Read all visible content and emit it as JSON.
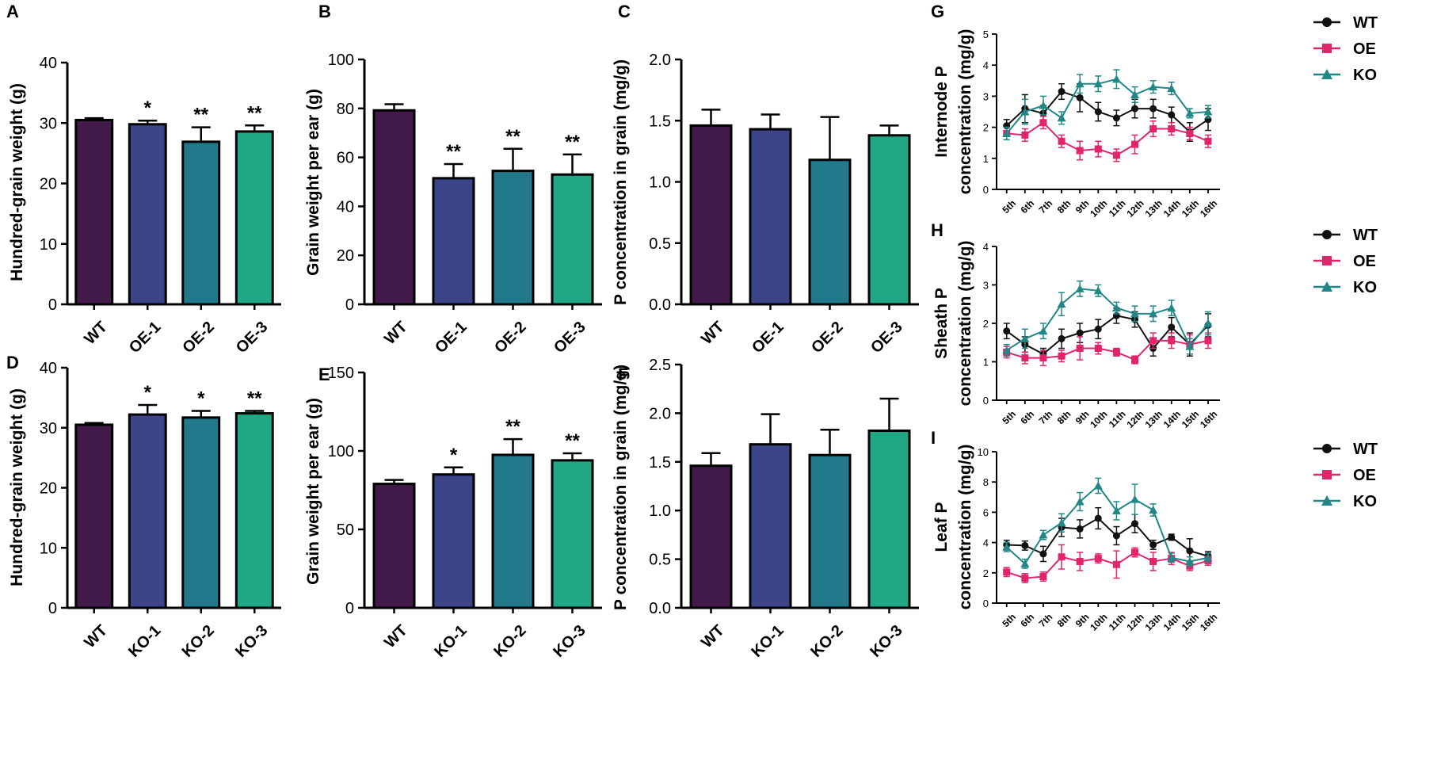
{
  "figure": {
    "type": "multi-panel scientific figure",
    "colors": {
      "WT": "#411a4a",
      "group1": "#3d4588",
      "group2": "#23798c",
      "group3": "#21a783",
      "line_WT": "#111111",
      "line_OE": "#e2246b",
      "line_KO": "#218787",
      "axis": "#000000"
    }
  },
  "chart_data": [
    {
      "panel": "A",
      "type": "bar",
      "categories": [
        "WT",
        "OE-1",
        "OE-2",
        "OE-3"
      ],
      "values": [
        30.5,
        29.8,
        26.9,
        28.6
      ],
      "errors": [
        0.3,
        0.6,
        2.4,
        1.0
      ],
      "significance": [
        "",
        "*",
        "**",
        "**"
      ],
      "ylabel": "Hundred-grain weight (g)",
      "ylim": [
        0,
        40
      ],
      "yticks": [
        "0",
        "10",
        "20",
        "30",
        "40"
      ]
    },
    {
      "panel": "B",
      "type": "bar",
      "categories": [
        "WT",
        "OE-1",
        "OE-2",
        "OE-3"
      ],
      "values": [
        79.2,
        51.5,
        54.5,
        53.0
      ],
      "errors": [
        2.5,
        5.8,
        9.0,
        8.2
      ],
      "significance": [
        "",
        "**",
        "**",
        "**"
      ],
      "ylabel": "Grain weight per ear (g)",
      "ylim": [
        0,
        100
      ],
      "yticks": [
        "0",
        "20",
        "40",
        "60",
        "80",
        "100"
      ]
    },
    {
      "panel": "C",
      "type": "bar",
      "categories": [
        "WT",
        "OE-1",
        "OE-2",
        "OE-3"
      ],
      "values": [
        1.46,
        1.43,
        1.18,
        1.38
      ],
      "errors": [
        0.13,
        0.12,
        0.35,
        0.08
      ],
      "significance": [
        "",
        "",
        "",
        ""
      ],
      "ylabel": "P  concentration in grain (mg/g)",
      "ylim": [
        0,
        2.0
      ],
      "yticks": [
        "0.0",
        "0.5",
        "1.0",
        "1.5",
        "2.0"
      ]
    },
    {
      "panel": "D",
      "type": "bar",
      "categories": [
        "WT",
        "KO-1",
        "KO-2",
        "KO-3"
      ],
      "values": [
        30.5,
        32.2,
        31.7,
        32.4
      ],
      "errors": [
        0.3,
        1.6,
        1.1,
        0.4
      ],
      "significance": [
        "",
        "*",
        "*",
        "**"
      ],
      "ylabel": "Hundred-grain weight (g)",
      "ylim": [
        0,
        40
      ],
      "yticks": [
        "0",
        "10",
        "20",
        "30",
        "40"
      ]
    },
    {
      "panel": "E",
      "type": "bar",
      "categories": [
        "WT",
        "KO-1",
        "KO-2",
        "KO-3"
      ],
      "values": [
        79.0,
        85.0,
        97.5,
        94.0
      ],
      "errors": [
        2.5,
        4.5,
        10.0,
        4.5
      ],
      "significance": [
        "",
        "*",
        "**",
        "**"
      ],
      "ylabel": "Grain weight per ear (g)",
      "ylim": [
        0,
        150
      ],
      "yticks": [
        "0",
        "50",
        "100",
        "150"
      ]
    },
    {
      "panel": "F",
      "type": "bar",
      "categories": [
        "WT",
        "KO-1",
        "KO-2",
        "KO-3"
      ],
      "values": [
        1.46,
        1.68,
        1.57,
        1.82
      ],
      "errors": [
        0.13,
        0.31,
        0.26,
        0.33
      ],
      "significance": [
        "",
        "",
        "",
        ""
      ],
      "ylabel": "P  concentration in grain (mg/g)",
      "ylim": [
        0,
        2.5
      ],
      "yticks": [
        "0.0",
        "0.5",
        "1.0",
        "1.5",
        "2.0",
        "2.5"
      ]
    },
    {
      "panel": "G",
      "type": "line",
      "x": [
        "5th",
        "6th",
        "7th",
        "8th",
        "9th",
        "10th",
        "11th",
        "12th",
        "13th",
        "14th",
        "15th",
        "16th"
      ],
      "ylabel_line1": "Internode P",
      "ylabel_line2": "concentration (mg/g)",
      "ylim": [
        0,
        5
      ],
      "yticks": [
        "0",
        "1",
        "2",
        "3",
        "4",
        "5"
      ],
      "legend": [
        "WT",
        "OE",
        "KO"
      ],
      "series": [
        {
          "name": "WT",
          "values": [
            2.05,
            2.6,
            2.45,
            3.15,
            2.95,
            2.5,
            2.3,
            2.6,
            2.6,
            2.4,
            1.85,
            2.25
          ],
          "errors": [
            0.2,
            0.45,
            0.25,
            0.25,
            0.45,
            0.3,
            0.25,
            0.3,
            0.3,
            0.25,
            0.3,
            0.35
          ]
        },
        {
          "name": "OE",
          "values": [
            1.8,
            1.75,
            2.15,
            1.55,
            1.25,
            1.3,
            1.1,
            1.45,
            1.95,
            1.95,
            1.8,
            1.55
          ],
          "errors": [
            0.2,
            0.2,
            0.2,
            0.2,
            0.3,
            0.25,
            0.2,
            0.3,
            0.25,
            0.2,
            0.2,
            0.2
          ]
        },
        {
          "name": "KO",
          "values": [
            1.8,
            2.5,
            2.7,
            2.3,
            3.4,
            3.4,
            3.55,
            3.05,
            3.3,
            3.25,
            2.45,
            2.5
          ],
          "errors": [
            0.2,
            0.4,
            0.3,
            0.2,
            0.3,
            0.25,
            0.3,
            0.25,
            0.2,
            0.2,
            0.15,
            0.2
          ]
        }
      ]
    },
    {
      "panel": "H",
      "type": "line",
      "x": [
        "5th",
        "6th",
        "7th",
        "8th",
        "9th",
        "10th",
        "11th",
        "12th",
        "13th",
        "14th",
        "15th",
        "16th"
      ],
      "ylabel_line1": "Sheath P",
      "ylabel_line2": "concentration (mg/g)",
      "ylim": [
        0,
        4
      ],
      "yticks": [
        "0",
        "1",
        "2",
        "3",
        "4"
      ],
      "legend": [
        "WT",
        "OE",
        "KO"
      ],
      "series": [
        {
          "name": "WT",
          "values": [
            1.8,
            1.45,
            1.2,
            1.6,
            1.75,
            1.85,
            2.2,
            2.1,
            1.35,
            1.9,
            1.45,
            1.95
          ],
          "errors": [
            0.2,
            0.2,
            0.15,
            0.25,
            0.25,
            0.25,
            0.2,
            0.2,
            0.2,
            0.25,
            0.3,
            0.3
          ]
        },
        {
          "name": "OE",
          "values": [
            1.25,
            1.1,
            1.1,
            1.15,
            1.35,
            1.35,
            1.25,
            1.05,
            1.55,
            1.55,
            1.45,
            1.55
          ],
          "errors": [
            0.15,
            0.15,
            0.2,
            0.15,
            0.3,
            0.15,
            0.1,
            0.1,
            0.2,
            0.2,
            0.25,
            0.2
          ]
        },
        {
          "name": "KO",
          "values": [
            1.3,
            1.6,
            1.8,
            2.5,
            2.9,
            2.85,
            2.4,
            2.25,
            2.25,
            2.4,
            1.4,
            2.0
          ],
          "errors": [
            0.15,
            0.25,
            0.2,
            0.3,
            0.2,
            0.15,
            0.15,
            0.2,
            0.2,
            0.2,
            0.2,
            0.3
          ]
        }
      ]
    },
    {
      "panel": "I",
      "type": "line",
      "x": [
        "5th",
        "6th",
        "7th",
        "8th",
        "9th",
        "10th",
        "11th",
        "12th",
        "13th",
        "14th",
        "15th",
        "16th"
      ],
      "ylabel_line1": "Leaf P",
      "ylabel_line2": "concentration (mg/g)",
      "ylim": [
        0,
        10
      ],
      "yticks": [
        "0",
        "2",
        "4",
        "6",
        "8",
        "10"
      ],
      "legend": [
        "WT",
        "OE",
        "KO"
      ],
      "series": [
        {
          "name": "WT",
          "values": [
            3.85,
            3.8,
            3.25,
            5.0,
            4.9,
            5.6,
            4.45,
            5.25,
            3.85,
            4.35,
            3.45,
            3.1
          ],
          "errors": [
            0.3,
            0.3,
            0.5,
            0.6,
            0.6,
            0.7,
            0.6,
            0.6,
            0.3,
            0.2,
            0.8,
            0.3
          ]
        },
        {
          "name": "OE",
          "values": [
            2.05,
            1.65,
            1.75,
            3.05,
            2.75,
            2.95,
            2.55,
            3.35,
            2.75,
            2.95,
            2.45,
            2.8
          ],
          "errors": [
            0.3,
            0.3,
            0.3,
            0.8,
            0.6,
            0.3,
            0.9,
            0.3,
            0.6,
            0.4,
            0.3,
            0.3
          ]
        },
        {
          "name": "KO",
          "values": [
            3.7,
            2.6,
            4.5,
            5.3,
            6.7,
            7.75,
            6.1,
            6.85,
            6.15,
            3.0,
            2.75,
            3.0
          ],
          "errors": [
            0.3,
            0.3,
            0.3,
            0.6,
            0.6,
            0.5,
            0.6,
            1.0,
            0.4,
            0.3,
            0.3,
            0.3
          ]
        }
      ]
    }
  ]
}
